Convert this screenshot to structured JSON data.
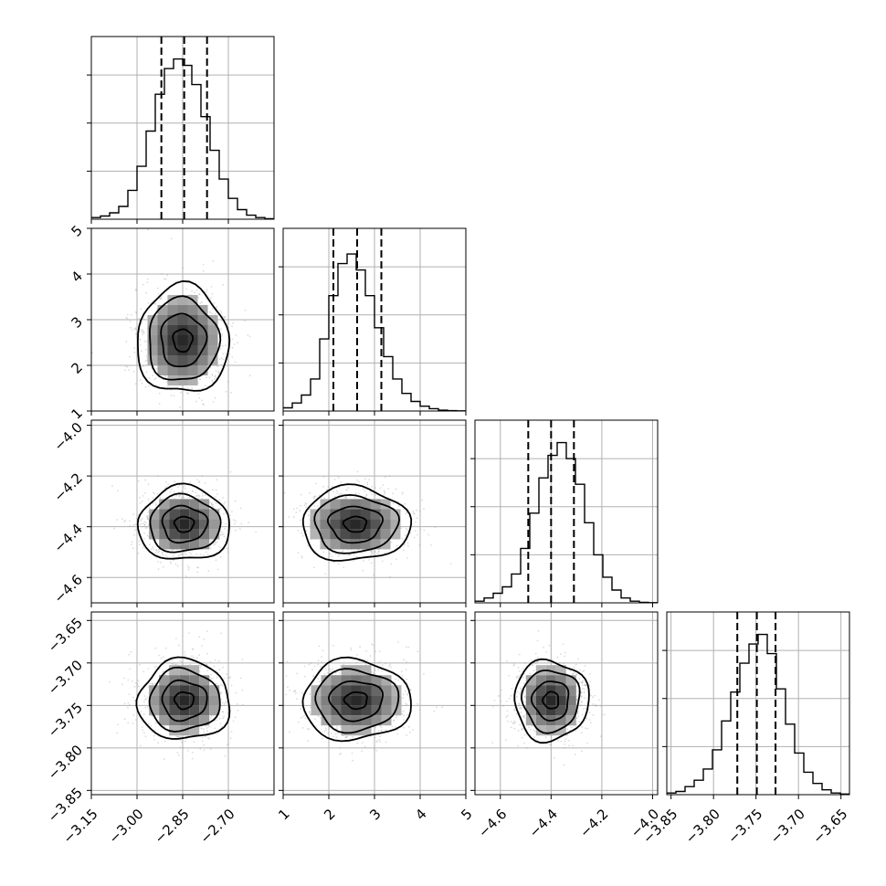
{
  "chart_data": {
    "type": "corner",
    "n_params": 4,
    "parameters": [
      {
        "range": [
          -3.15,
          -2.55
        ],
        "ticks": [
          -3.15,
          -3.0,
          -2.85,
          -2.7
        ],
        "tick_labels": [
          "−3.15",
          "−3.00",
          "−2.85",
          "−2.70"
        ],
        "quantiles": [
          -2.92,
          -2.845,
          -2.77
        ],
        "hist": [
          0.01,
          0.02,
          0.04,
          0.08,
          0.18,
          0.33,
          0.55,
          0.78,
          0.94,
          1.0,
          0.96,
          0.84,
          0.64,
          0.43,
          0.25,
          0.13,
          0.06,
          0.025,
          0.01,
          0.003
        ]
      },
      {
        "range": [
          1.0,
          5.0
        ],
        "ticks": [
          1,
          2,
          3,
          4,
          5
        ],
        "tick_labels": [
          "1",
          "2",
          "3",
          "4",
          "5"
        ],
        "quantiles": [
          2.1,
          2.62,
          3.15
        ],
        "hist": [
          0.02,
          0.05,
          0.1,
          0.2,
          0.45,
          0.72,
          0.92,
          0.98,
          0.88,
          0.72,
          0.52,
          0.34,
          0.2,
          0.11,
          0.06,
          0.03,
          0.015,
          0.005,
          0.002,
          0.001
        ]
      },
      {
        "range": [
          -4.7,
          -3.98
        ],
        "ticks": [
          -4.6,
          -4.4,
          -4.2,
          -4.0
        ],
        "tick_labels": [
          "−4.6",
          "−4.4",
          "−4.2",
          "−4.0"
        ],
        "quantiles": [
          -4.49,
          -4.4,
          -4.31
        ],
        "hist": [
          0.01,
          0.03,
          0.06,
          0.1,
          0.18,
          0.34,
          0.56,
          0.78,
          0.92,
          1.0,
          0.9,
          0.74,
          0.5,
          0.3,
          0.16,
          0.08,
          0.03,
          0.01,
          0.003,
          0.001
        ]
      },
      {
        "range": [
          -3.855,
          -3.64
        ],
        "ticks": [
          -3.85,
          -3.8,
          -3.75,
          -3.7,
          -3.65
        ],
        "tick_labels": [
          "−3.85",
          "−3.80",
          "−3.75",
          "−3.70",
          "−3.65"
        ],
        "quantiles": [
          -3.772,
          -3.749,
          -3.727
        ],
        "hist": [
          0.01,
          0.02,
          0.05,
          0.09,
          0.16,
          0.28,
          0.46,
          0.64,
          0.82,
          0.94,
          1.0,
          0.88,
          0.66,
          0.44,
          0.26,
          0.14,
          0.07,
          0.03,
          0.01,
          0.004
        ]
      }
    ],
    "pair_stats": {
      "1-0": {
        "mean": [
          -2.85,
          2.55
        ],
        "sd": [
          0.07,
          0.55
        ]
      },
      "2-0": {
        "mean": [
          -2.845,
          -4.39
        ],
        "sd": [
          0.07,
          0.068
        ]
      },
      "2-1": {
        "mean": [
          2.58,
          -4.39
        ],
        "sd": [
          0.55,
          0.068
        ]
      },
      "3-0": {
        "mean": [
          -2.845,
          -3.744
        ],
        "sd": [
          0.07,
          0.022
        ]
      },
      "3-1": {
        "mean": [
          2.6,
          -3.744
        ],
        "sd": [
          0.55,
          0.022
        ]
      },
      "3-2": {
        "mean": [
          -4.4,
          -3.744
        ],
        "sd": [
          0.068,
          0.022
        ]
      }
    },
    "grid": true,
    "colors": {
      "line": "#000000",
      "grid": "#b0b0b0",
      "points": "#9a9a9a"
    }
  }
}
